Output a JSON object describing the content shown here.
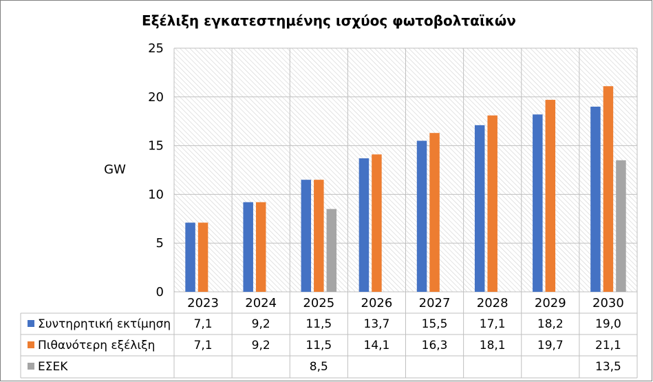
{
  "chart_data": {
    "type": "bar",
    "title": "Εξέλιξη εγκατεστημένης ισχύος φωτοβολταϊκών",
    "ylabel": "GW",
    "xlabel": "",
    "ylim": [
      0,
      25
    ],
    "yticks": [
      0,
      5,
      10,
      15,
      20,
      25
    ],
    "grid": true,
    "legend": "bottom-table",
    "categories": [
      "2023",
      "2024",
      "2025",
      "2026",
      "2027",
      "2028",
      "2029",
      "2030"
    ],
    "series": [
      {
        "name": "Συντηρητική εκτίμηση",
        "color": "#4472C4",
        "values": [
          7.1,
          9.2,
          11.5,
          13.7,
          15.5,
          17.1,
          18.2,
          19.0
        ],
        "labels": [
          "7,1",
          "9,2",
          "11,5",
          "13,7",
          "15,5",
          "17,1",
          "18,2",
          "19,0"
        ]
      },
      {
        "name": "Πιθανότερη εξέλιξη",
        "color": "#ED7D31",
        "values": [
          7.1,
          9.2,
          11.5,
          14.1,
          16.3,
          18.1,
          19.7,
          21.1
        ],
        "labels": [
          "7,1",
          "9,2",
          "11,5",
          "14,1",
          "16,3",
          "18,1",
          "19,7",
          "21,1"
        ]
      },
      {
        "name": "ΕΣΕΚ",
        "color": "#A5A5A5",
        "values": [
          null,
          null,
          8.5,
          null,
          null,
          null,
          null,
          13.5
        ],
        "labels": [
          "",
          "",
          "8,5",
          "",
          "",
          "",
          "",
          "13,5"
        ]
      }
    ]
  }
}
